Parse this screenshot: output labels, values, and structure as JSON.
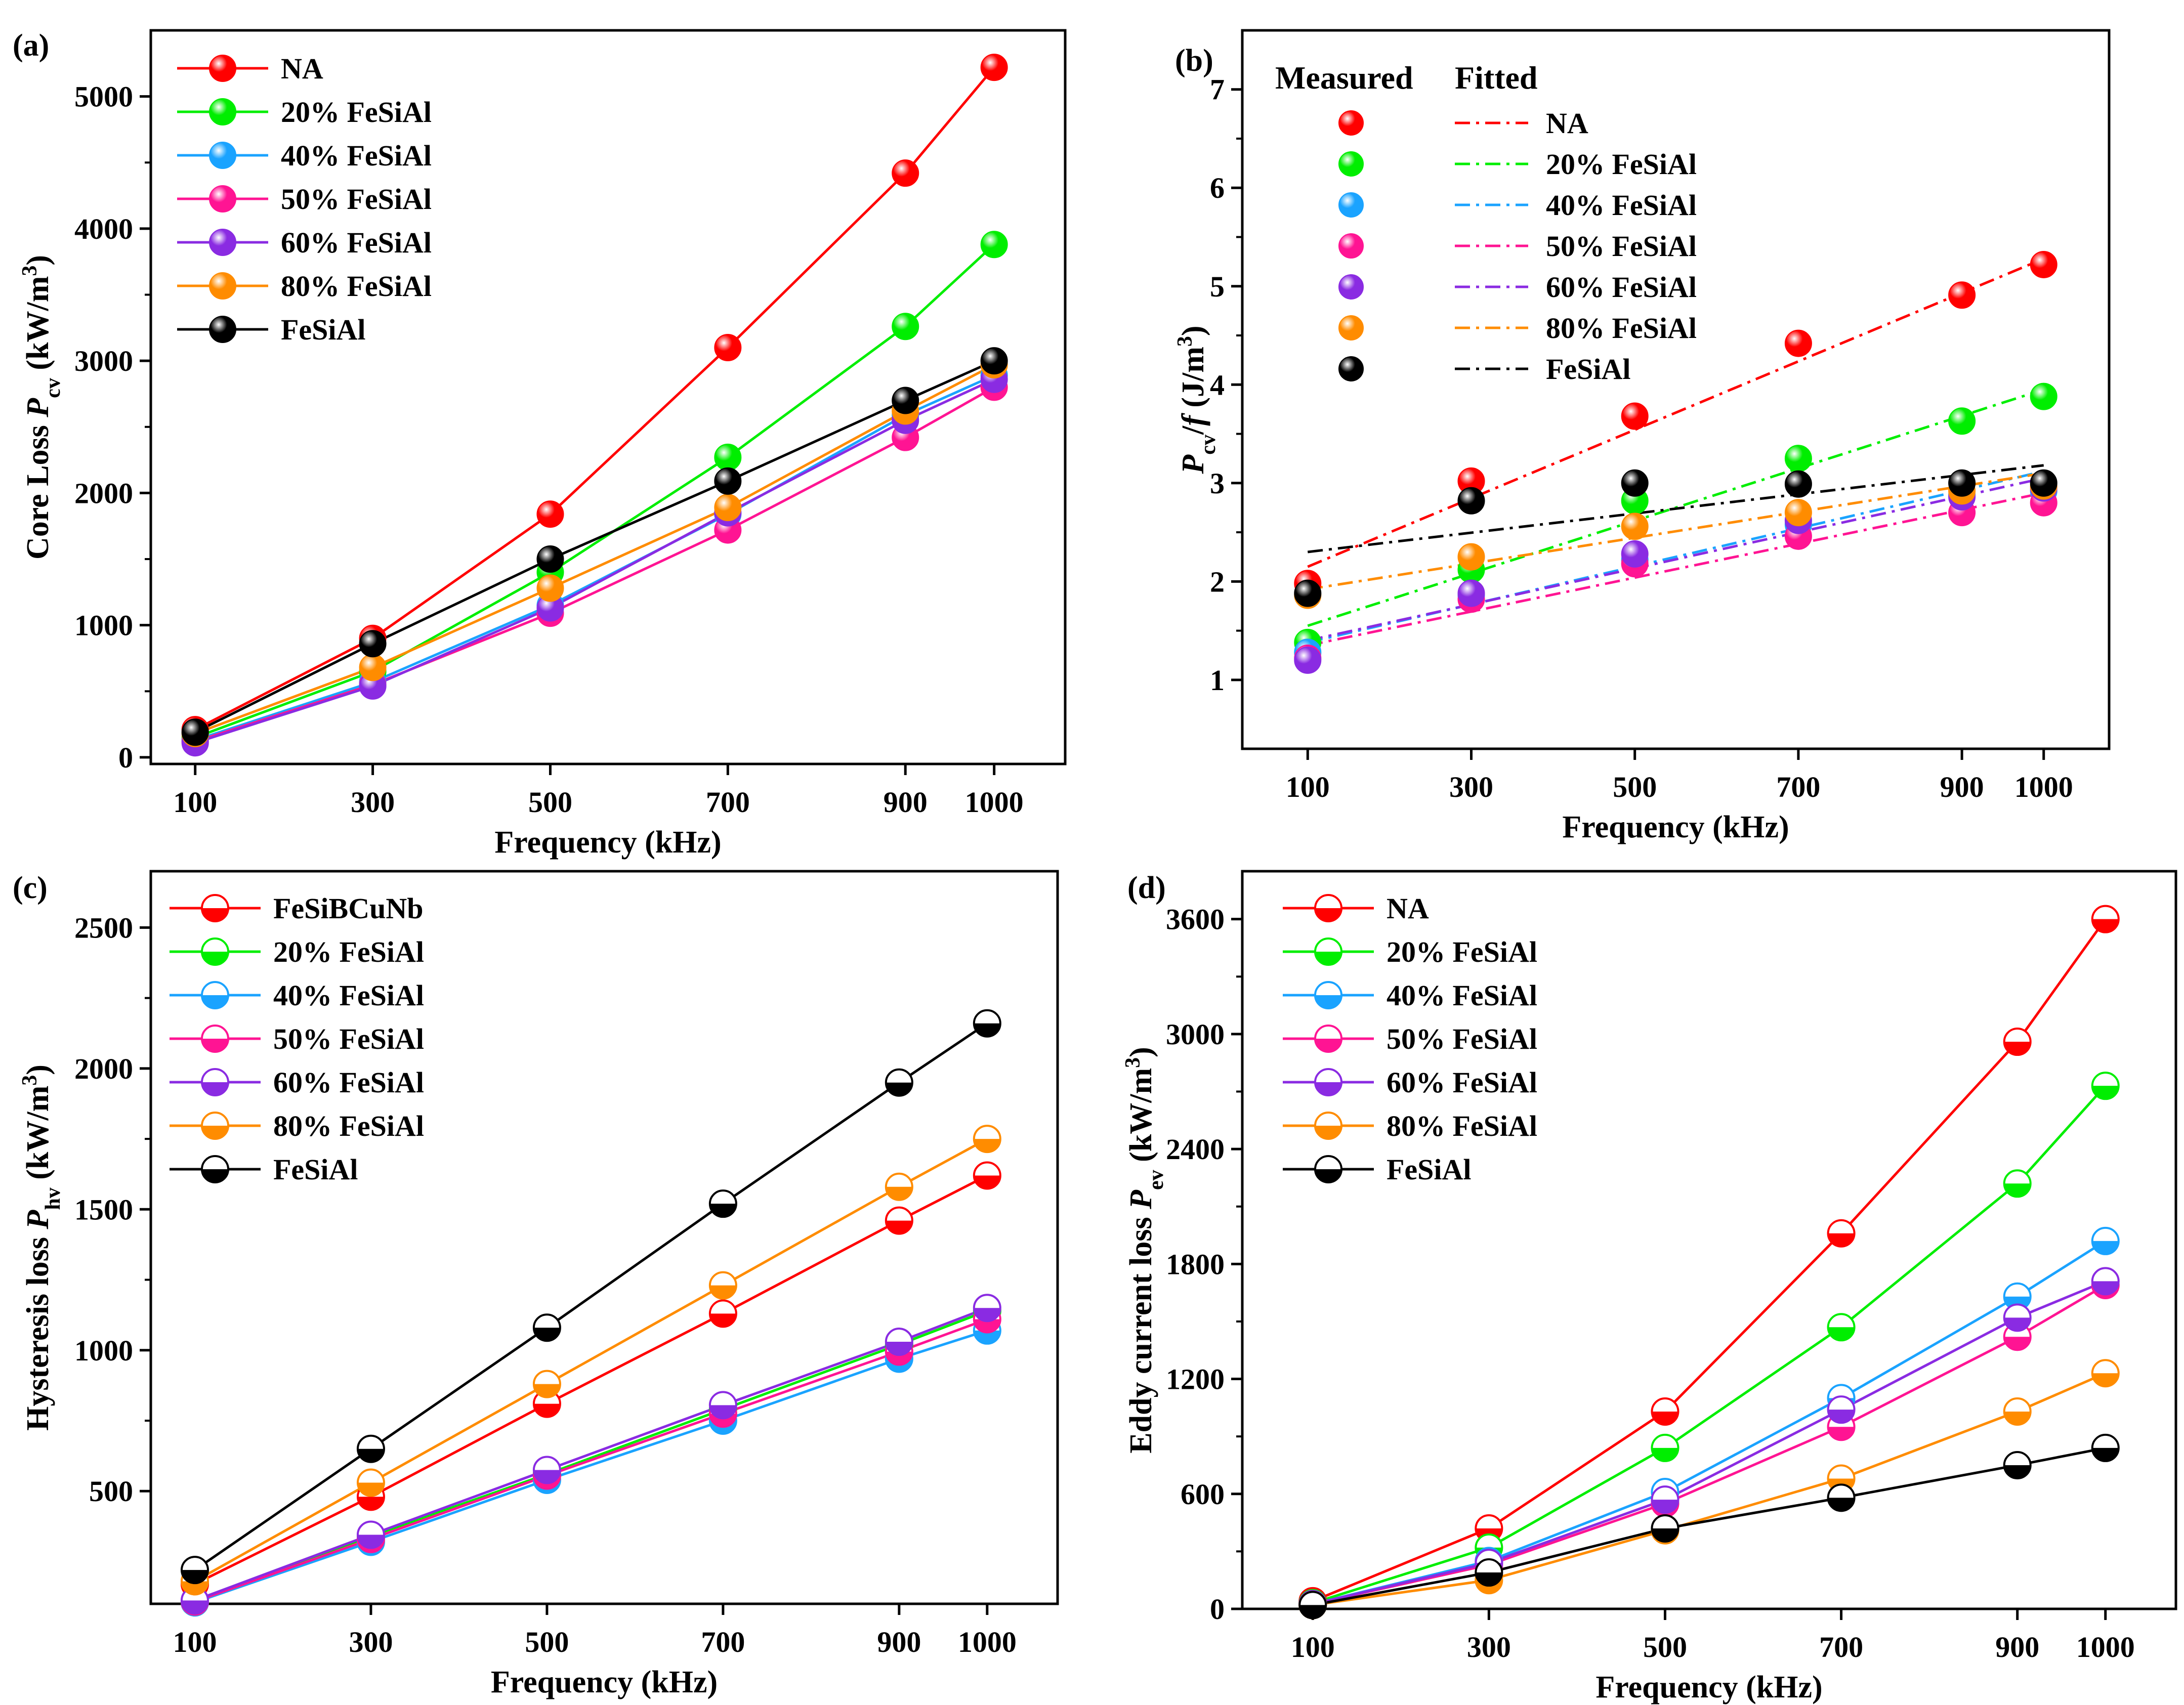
{
  "figure": {
    "colors": {
      "NA": "#ff0000",
      "FeSiBCuNb": "#ff0000",
      "20% FeSiAl": "#00ee00",
      "40% FeSiAl": "#1aa3ff",
      "50% FeSiAl": "#ff1493",
      "60% FeSiAl": "#8a2be2",
      "80% FeSiAl": "#ff8c00",
      "FeSiAl": "#000000"
    }
  },
  "chart_data": [
    {
      "id": "a",
      "panel_label": "(a)",
      "type": "line",
      "marker": "sphere",
      "x": [
        "100",
        "300",
        "500",
        "700",
        "900",
        "1000"
      ],
      "x_values": [
        100,
        300,
        500,
        700,
        900,
        1000
      ],
      "xlabel": "Frequency (kHz)",
      "ylabel": {
        "prefix": "Core Loss ",
        "sym": "P",
        "sub": "cv",
        "unit_pre": " (kW/m",
        "sup": "3",
        "unit_post": ")"
      },
      "xlim": [
        50,
        1080
      ],
      "ylim": [
        -50,
        5500
      ],
      "yticks": [
        0,
        1000,
        2000,
        3000,
        4000,
        5000
      ],
      "legend_position": "top-left",
      "series": [
        {
          "name": "NA",
          "values": [
            210,
            900,
            1840,
            3100,
            4420,
            5220
          ]
        },
        {
          "name": "20% FeSiAl",
          "values": [
            150,
            650,
            1400,
            2270,
            3260,
            3880
          ]
        },
        {
          "name": "40% FeSiAl",
          "values": [
            130,
            570,
            1150,
            1840,
            2590,
            2890
          ]
        },
        {
          "name": "50% FeSiAl",
          "values": [
            120,
            550,
            1090,
            1720,
            2420,
            2800
          ]
        },
        {
          "name": "60% FeSiAl",
          "values": [
            110,
            540,
            1130,
            1850,
            2550,
            2860
          ]
        },
        {
          "name": "80% FeSiAl",
          "values": [
            180,
            680,
            1280,
            1890,
            2620,
            2970
          ]
        },
        {
          "name": "FeSiAl",
          "values": [
            190,
            860,
            1500,
            2090,
            2700,
            3000
          ]
        }
      ]
    },
    {
      "id": "b",
      "panel_label": "(b)",
      "type": "scatter",
      "marker": "sphere",
      "x": [
        "100",
        "300",
        "500",
        "700",
        "900",
        "1000"
      ],
      "x_values": [
        100,
        300,
        500,
        700,
        900,
        1000
      ],
      "xlabel": "Frequency (kHz)",
      "ylabel": {
        "prefix": "",
        "sym": "P",
        "sub": "cv",
        "mid": "/",
        "sym2": "f",
        "unit_pre": " (J/m",
        "sup": "3",
        "unit_post": ")"
      },
      "xlim": [
        20,
        1080
      ],
      "ylim": [
        0.3,
        7.6
      ],
      "yticks": [
        1,
        2,
        3,
        4,
        5,
        6,
        7
      ],
      "legend_headers": {
        "measured": "Measured",
        "fitted": "Fitted"
      },
      "legend_position": "top-left",
      "series": [
        {
          "name": "NA",
          "values": [
            1.98,
            3.02,
            3.68,
            4.42,
            4.91,
            5.22
          ],
          "fit": [
            2.15,
            5.28
          ]
        },
        {
          "name": "20% FeSiAl",
          "values": [
            1.38,
            2.12,
            2.82,
            3.25,
            3.63,
            3.88
          ],
          "fit": [
            1.55,
            3.95
          ]
        },
        {
          "name": "40% FeSiAl",
          "values": [
            1.28,
            1.86,
            2.22,
            2.58,
            2.88,
            2.92
          ],
          "fit": [
            1.38,
            3.12
          ]
        },
        {
          "name": "50% FeSiAl",
          "values": [
            1.22,
            1.82,
            2.18,
            2.46,
            2.7,
            2.8
          ],
          "fit": [
            1.35,
            2.9
          ]
        },
        {
          "name": "60% FeSiAl",
          "values": [
            1.2,
            1.88,
            2.28,
            2.62,
            2.86,
            2.95
          ],
          "fit": [
            1.4,
            3.05
          ]
        },
        {
          "name": "80% FeSiAl",
          "values": [
            1.86,
            2.25,
            2.56,
            2.7,
            2.92,
            2.97
          ],
          "fit": [
            1.92,
            3.1
          ]
        },
        {
          "name": "FeSiAl",
          "values": [
            1.88,
            2.82,
            3.0,
            2.99,
            3.0,
            3.0
          ],
          "fit": [
            2.3,
            3.18
          ]
        }
      ]
    },
    {
      "id": "c",
      "panel_label": "(c)",
      "type": "line",
      "marker": "half-bottom",
      "x": [
        "100",
        "300",
        "500",
        "700",
        "900",
        "1000"
      ],
      "x_values": [
        100,
        300,
        500,
        700,
        900,
        1000
      ],
      "xlabel": "Frequency (kHz)",
      "ylabel": {
        "prefix": "Hysteresis loss ",
        "sym": "P",
        "sub": "hv",
        "unit_pre": " (kW/m",
        "sup": "3",
        "unit_post": ")"
      },
      "xlim": [
        50,
        1080
      ],
      "ylim": [
        100,
        2700
      ],
      "yticks": [
        500,
        1000,
        1500,
        2000,
        2500
      ],
      "legend_position": "top-left",
      "series": [
        {
          "name": "FeSiBCuNb",
          "values": [
            170,
            480,
            810,
            1130,
            1460,
            1620
          ]
        },
        {
          "name": "20% FeSiAl",
          "values": [
            110,
            340,
            560,
            790,
            1020,
            1140
          ]
        },
        {
          "name": "40% FeSiAl",
          "values": [
            105,
            320,
            540,
            750,
            970,
            1070
          ]
        },
        {
          "name": "50% FeSiAl",
          "values": [
            108,
            330,
            555,
            775,
            995,
            1110
          ]
        },
        {
          "name": "60% FeSiAl",
          "values": [
            112,
            345,
            575,
            805,
            1030,
            1150
          ]
        },
        {
          "name": "80% FeSiAl",
          "values": [
            180,
            530,
            880,
            1230,
            1580,
            1750
          ]
        },
        {
          "name": "FeSiAl",
          "values": [
            220,
            650,
            1080,
            1520,
            1950,
            2160
          ]
        }
      ]
    },
    {
      "id": "d",
      "panel_label": "(d)",
      "type": "line",
      "marker": "half-bottom",
      "x": [
        "100",
        "300",
        "500",
        "700",
        "900",
        "1000"
      ],
      "x_values": [
        100,
        300,
        500,
        700,
        900,
        1000
      ],
      "xlabel": "Frequency (kHz)",
      "ylabel": {
        "prefix": "Eddy current loss ",
        "sym": "P",
        "sub": "ev",
        "unit_pre": " (kW/m",
        "sup": "3",
        "unit_post": ")"
      },
      "xlim": [
        20,
        1080
      ],
      "ylim": [
        0,
        3850
      ],
      "yticks": [
        0,
        600,
        1200,
        1800,
        2400,
        3000,
        3600
      ],
      "legend_position": "top-left",
      "series": [
        {
          "name": "NA",
          "values": [
            40,
            420,
            1030,
            1960,
            2960,
            3600
          ]
        },
        {
          "name": "20% FeSiAl",
          "values": [
            30,
            320,
            840,
            1470,
            2220,
            2730
          ]
        },
        {
          "name": "40% FeSiAl",
          "values": [
            25,
            250,
            610,
            1100,
            1630,
            1920
          ]
        },
        {
          "name": "50% FeSiAl",
          "values": [
            25,
            230,
            550,
            950,
            1420,
            1690
          ]
        },
        {
          "name": "60% FeSiAl",
          "values": [
            25,
            240,
            570,
            1040,
            1520,
            1710
          ]
        },
        {
          "name": "80% FeSiAl",
          "values": [
            20,
            150,
            410,
            680,
            1030,
            1230
          ]
        },
        {
          "name": "FeSiAl",
          "values": [
            20,
            190,
            420,
            580,
            750,
            840
          ]
        }
      ]
    }
  ]
}
